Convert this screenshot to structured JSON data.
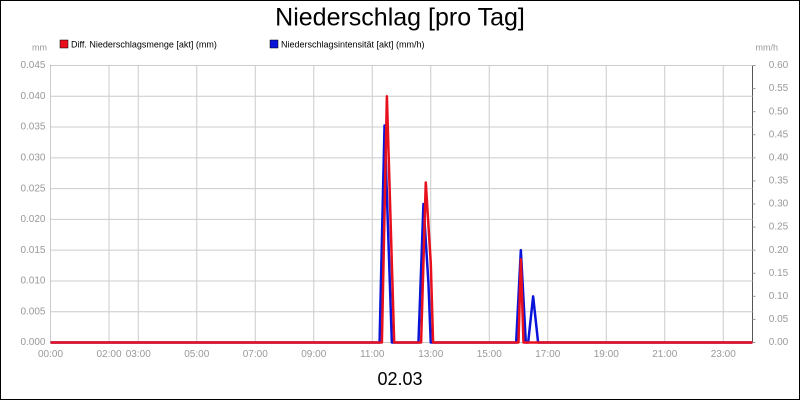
{
  "chart_data": {
    "type": "line",
    "title": "Niederschlag [pro Tag]",
    "y_label": "mm",
    "y2_label": "mm/h",
    "x_label": "02.03",
    "xlim": [
      0,
      24
    ],
    "xticks": [
      {
        "value": 0,
        "label": "00:00"
      },
      {
        "value": 2,
        "label": "02:00"
      },
      {
        "value": 3,
        "label": "03:00"
      },
      {
        "value": 5,
        "label": "05:00"
      },
      {
        "value": 7,
        "label": "07:00"
      },
      {
        "value": 9,
        "label": "09:00"
      },
      {
        "value": 11,
        "label": "11:00"
      },
      {
        "value": 13,
        "label": "13:00"
      },
      {
        "value": 15,
        "label": "15:00"
      },
      {
        "value": 17,
        "label": "17:00"
      },
      {
        "value": 19,
        "label": "19:00"
      },
      {
        "value": 21,
        "label": "21:00"
      },
      {
        "value": 23,
        "label": "23:00"
      }
    ],
    "ylim": [
      0,
      0.045
    ],
    "yticks": [
      {
        "value": 0,
        "label": "0.000"
      },
      {
        "value": 0.005,
        "label": "0.005"
      },
      {
        "value": 0.01,
        "label": "0.010"
      },
      {
        "value": 0.015,
        "label": "0.015"
      },
      {
        "value": 0.02,
        "label": "0.020"
      },
      {
        "value": 0.025,
        "label": "0.025"
      },
      {
        "value": 0.03,
        "label": "0.030"
      },
      {
        "value": 0.035,
        "label": "0.035"
      },
      {
        "value": 0.04,
        "label": "0.040"
      },
      {
        "value": 0.045,
        "label": "0.045"
      }
    ],
    "y2lim": [
      0,
      0.6
    ],
    "y2ticks": [
      {
        "value": 0,
        "label": "0.00"
      },
      {
        "value": 0.05,
        "label": "0.05"
      },
      {
        "value": 0.1,
        "label": "0.10"
      },
      {
        "value": 0.15,
        "label": "0.15"
      },
      {
        "value": 0.2,
        "label": "0.20"
      },
      {
        "value": 0.25,
        "label": "0.25"
      },
      {
        "value": 0.3,
        "label": "0.30"
      },
      {
        "value": 0.35,
        "label": "0.35"
      },
      {
        "value": 0.4,
        "label": "0.40"
      },
      {
        "value": 0.45,
        "label": "0.45"
      },
      {
        "value": 0.5,
        "label": "0.50"
      },
      {
        "value": 0.55,
        "label": "0.55"
      },
      {
        "value": 0.6,
        "label": "0.60"
      }
    ],
    "grid": true,
    "series": [
      {
        "name": "Diff. Niederschlagsmenge [akt] (mm)",
        "color": "#e8101c",
        "axis": "y",
        "x": [
          0,
          11.33,
          11.5,
          11.75,
          12.67,
          12.83,
          13.0,
          13.08,
          16.0,
          16.08,
          16.17,
          24
        ],
        "values": [
          0,
          0,
          0.04,
          0,
          0,
          0.026,
          0.013,
          0,
          0,
          0.0135,
          0,
          0
        ]
      },
      {
        "name": "Niederschlagsintensität [akt] (mm/h)",
        "color": "#0a14d8",
        "axis": "y2",
        "x": [
          0,
          11.25,
          11.42,
          11.67,
          12.58,
          12.75,
          12.92,
          13.0,
          15.92,
          16.08,
          16.25,
          16.33,
          16.5,
          16.67,
          24
        ],
        "values": [
          0,
          0,
          0.47,
          0,
          0,
          0.3,
          0.13,
          0,
          0,
          0.2,
          0,
          0,
          0.1,
          0,
          0
        ]
      }
    ]
  }
}
